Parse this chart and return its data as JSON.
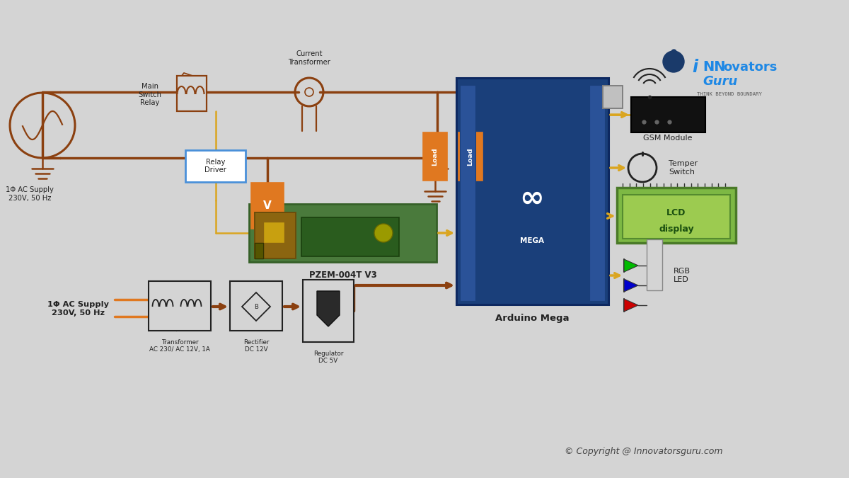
{
  "bg_color": "#d4d4d4",
  "wire_brown": "#8B4010",
  "wire_yellow": "#DAA520",
  "orange": "#E07820",
  "blue_box": "#4A90D9",
  "green_pcb": "#4A7C3F",
  "dark": "#222222",
  "white": "#ffffff",
  "copyright_text": "© Copyright @ Innovatorsguru.com",
  "logo_sub": "THINK BEYOND BOUNDARY",
  "labels": {
    "ac_supply_top": "1Φ AC Supply\n230V, 50 Hz",
    "main_switch_relay": "Main\nSwitch\nRelay",
    "current_transformer": "Current\nTransformer",
    "relay_driver": "Relay\nDriver",
    "pzem": "PZEM-004T V3",
    "load1": "Load",
    "load2": "Load",
    "gsm": "GSM Module",
    "temper_switch": "Temper\nSwitch",
    "lcd_line1": "LCD",
    "lcd_line2": "display",
    "rgb_led": "RGB\nLED",
    "arduino": "Arduino Mega",
    "ac_supply_bot": "1Φ AC Supply\n230V, 50 Hz",
    "transformer": "Transformer\nAC 230/ AC 12V, 1A",
    "rectifier": "Rectifier\nDC 12V",
    "regulator": "Regulator\nDC 5V"
  }
}
